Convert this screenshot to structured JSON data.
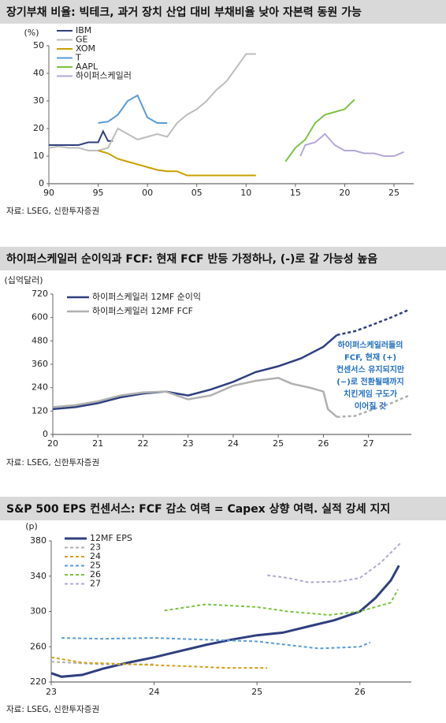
{
  "chart_data": [
    {
      "type": "line",
      "title": "장기부채 비율: 빅테크, 과거 장치 산업 대비 부채비율 낮아 자본력 동원 가능",
      "y_label": "(%)",
      "source": "자료: LSEG, 신한투자증권",
      "xlim": [
        1990,
        2027
      ],
      "ylim": [
        0,
        50
      ],
      "xticks": [
        {
          "value": 1990,
          "label": "90"
        },
        {
          "value": 1995,
          "label": "95"
        },
        {
          "value": 2000,
          "label": "00"
        },
        {
          "value": 2005,
          "label": "05"
        },
        {
          "value": 2010,
          "label": "10"
        },
        {
          "value": 2015,
          "label": "15"
        },
        {
          "value": 2020,
          "label": "20"
        },
        {
          "value": 2025,
          "label": "25"
        }
      ],
      "yticks": [
        0,
        10,
        20,
        30,
        40,
        50
      ],
      "series": [
        {
          "name": "IBM",
          "color": "#2f3f7f",
          "x": [
            1990,
            1991,
            1992,
            1993,
            1994,
            1995,
            1995.5,
            1996,
            1996.5
          ],
          "values": [
            14,
            14,
            14,
            14,
            15,
            15,
            19,
            15.5,
            15.5
          ]
        },
        {
          "name": "GE",
          "color": "#bdbdbd",
          "x": [
            1990,
            1991,
            1992,
            1993,
            1994,
            1995,
            1996,
            1997,
            1998,
            1999,
            2000,
            2001,
            2002,
            2003,
            2004,
            2005,
            2006,
            2007,
            2008,
            2009,
            2010,
            2011
          ],
          "values": [
            13,
            13.5,
            13,
            13,
            12,
            12,
            13,
            20,
            18,
            16,
            17,
            18,
            17,
            22,
            25,
            27,
            30,
            34,
            37,
            42,
            47,
            47
          ]
        },
        {
          "name": "XOM",
          "color": "#c8a000",
          "x": [
            1995,
            1996,
            1997,
            1998,
            1999,
            2000,
            2001,
            2002,
            2003,
            2004,
            2005,
            2006,
            2007,
            2008,
            2009,
            2010,
            2011
          ],
          "values": [
            12,
            11,
            9,
            8,
            7,
            6,
            5,
            4.5,
            4.5,
            3,
            3,
            3,
            3,
            3,
            3,
            3,
            3
          ]
        },
        {
          "name": "T",
          "color": "#5b9bd5",
          "x": [
            1995,
            1996,
            1997,
            1998,
            1999,
            2000,
            2001,
            2002
          ],
          "values": [
            22,
            22.5,
            25,
            30,
            32,
            24,
            22,
            22
          ]
        },
        {
          "name": "AAPL",
          "color": "#7dc242",
          "x": [
            2014,
            2015,
            2016,
            2017,
            2018,
            2019,
            2020,
            2021
          ],
          "values": [
            8,
            13,
            16,
            22,
            25,
            26,
            27,
            30.5
          ]
        },
        {
          "name": "하이퍼스케일러",
          "color": "#b4a7d6",
          "x": [
            2015.5,
            2016,
            2017,
            2018,
            2019,
            2020,
            2021,
            2022,
            2023,
            2024,
            2025,
            2026
          ],
          "values": [
            10,
            14,
            15,
            18,
            14,
            12,
            12,
            11,
            11,
            10,
            10,
            11.5
          ]
        }
      ]
    },
    {
      "type": "line",
      "title": "하이퍼스케일러 순이익과 FCF: 현재 FCF 반등 가정하나, (-)로 갈 가능성 높음",
      "y_label": "(십억달러)",
      "source": "자료: LSEG, 신한투자증권",
      "xlim": [
        2020,
        2027.95
      ],
      "ylim": [
        0,
        720
      ],
      "xticks": [
        {
          "value": 2020,
          "label": "20"
        },
        {
          "value": 2021,
          "label": "21"
        },
        {
          "value": 2022,
          "label": "22"
        },
        {
          "value": 2023,
          "label": "23"
        },
        {
          "value": 2024,
          "label": "24"
        },
        {
          "value": 2025,
          "label": "25"
        },
        {
          "value": 2026,
          "label": "26"
        },
        {
          "value": 2027,
          "label": "27"
        }
      ],
      "yticks": [
        0,
        120,
        240,
        360,
        480,
        600,
        720
      ],
      "annotation": [
        "하이퍼스케일러들의",
        "FCF, 현재 (+)",
        "컨센서스 유지되지만",
        "(−)로 전환될때까지",
        "치킨게임 구도가",
        "이어질 것"
      ],
      "series": [
        {
          "name": "하이퍼스케일러 12MF 순이익",
          "color": "#2f3f7f",
          "x": [
            2020,
            2020.5,
            2021,
            2021.5,
            2022,
            2022.5,
            2023,
            2023.5,
            2024,
            2024.5,
            2025,
            2025.5,
            2026,
            2026.3
          ],
          "values": [
            130,
            140,
            160,
            190,
            210,
            220,
            200,
            230,
            270,
            320,
            350,
            390,
            450,
            510
          ]
        },
        {
          "name": "하이퍼스케일러 12MF FCF",
          "color": "#b0b0b0",
          "x": [
            2020,
            2020.5,
            2021,
            2021.5,
            2022,
            2022.5,
            2023,
            2023.5,
            2024,
            2024.5,
            2025,
            2025.3,
            2025.7,
            2026,
            2026.1,
            2026.3
          ],
          "values": [
            140,
            150,
            170,
            200,
            215,
            220,
            180,
            200,
            250,
            275,
            290,
            260,
            240,
            220,
            130,
            90
          ]
        },
        {
          "color": "#2f3f7f",
          "dashed": true,
          "x": [
            2026.3,
            2026.7,
            2027,
            2027.5,
            2027.9
          ],
          "values": [
            510,
            530,
            555,
            600,
            640
          ]
        },
        {
          "color": "#b0b0b0",
          "dashed": true,
          "x": [
            2026.3,
            2026.7,
            2027,
            2027.5,
            2027.9
          ],
          "values": [
            90,
            95,
            120,
            160,
            200
          ]
        }
      ]
    },
    {
      "type": "line",
      "title": "S&P 500 EPS 컨센서스: FCF 감소 여력 = Capex 상향 여력. 실적 강세 지지",
      "y_label": "(p)",
      "source": "자료: LSEG, 신한투자증권",
      "xlim": [
        2023,
        2026.5
      ],
      "ylim": [
        220,
        380
      ],
      "xticks": [
        {
          "value": 2023,
          "label": "23"
        },
        {
          "value": 2024,
          "label": "24"
        },
        {
          "value": 2025,
          "label": "25"
        },
        {
          "value": 2026,
          "label": "26"
        }
      ],
      "yticks": [
        220,
        260,
        300,
        340,
        380
      ],
      "series": [
        {
          "name": "12MF EPS",
          "color": "#2f3f7f",
          "x": [
            2023,
            2023.1,
            2023.3,
            2023.5,
            2023.75,
            2024,
            2024.25,
            2024.5,
            2024.75,
            2025,
            2025.25,
            2025.5,
            2025.75,
            2026,
            2026.15,
            2026.3,
            2026.38
          ],
          "values": [
            230,
            226,
            228,
            235,
            242,
            248,
            255,
            262,
            268,
            273,
            276,
            283,
            290,
            300,
            315,
            335,
            352
          ]
        },
        {
          "name": "23",
          "color": "#b0b0b0",
          "dashed": true,
          "x": [
            2023,
            2023.5,
            2024
          ],
          "values": [
            243,
            240,
            240
          ]
        },
        {
          "name": "24",
          "color": "#d4a017",
          "dashed": true,
          "x": [
            2023,
            2023.3,
            2023.8,
            2024.3,
            2024.7,
            2025.1
          ],
          "values": [
            248,
            242,
            240,
            238,
            236,
            236
          ]
        },
        {
          "name": "25",
          "color": "#5b9bd5",
          "dashed": true,
          "x": [
            2023.1,
            2023.5,
            2024,
            2024.5,
            2025,
            2025.3,
            2025.6,
            2026,
            2026.1
          ],
          "values": [
            270,
            269,
            270,
            268,
            266,
            262,
            258,
            260,
            265
          ]
        },
        {
          "name": "26",
          "color": "#7dc242",
          "dashed": true,
          "x": [
            2024.1,
            2024.5,
            2025,
            2025.3,
            2025.7,
            2026,
            2026.3,
            2026.37
          ],
          "values": [
            301,
            308,
            305,
            300,
            296,
            300,
            310,
            325
          ]
        },
        {
          "name": "27",
          "color": "#b4a7d6",
          "dashed": true,
          "x": [
            2025.1,
            2025.3,
            2025.5,
            2025.8,
            2026,
            2026.2,
            2026.4
          ],
          "values": [
            341,
            338,
            333,
            334,
            338,
            355,
            378
          ]
        }
      ]
    }
  ]
}
